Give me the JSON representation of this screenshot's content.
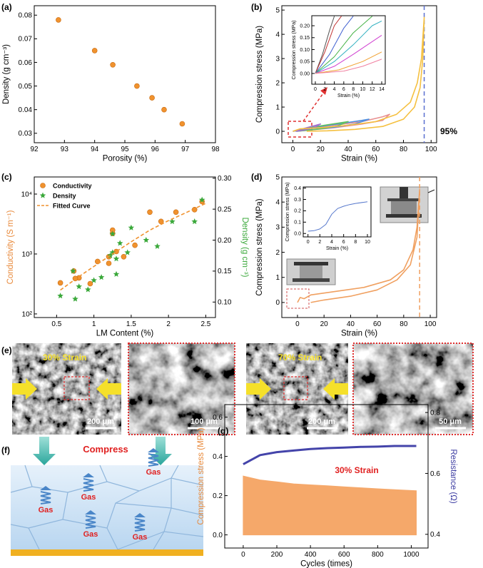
{
  "chart_data": [
    {
      "type": "scatter",
      "panel": "(a)",
      "xlabel": "Porosity (%)",
      "ylabel": "Density (g cm⁻³)",
      "xlim": [
        92,
        98
      ],
      "xticks": [
        92,
        93,
        94,
        95,
        96,
        97,
        98
      ],
      "ylim": [
        0.026,
        0.084
      ],
      "yticks": [
        0.03,
        0.04,
        0.05,
        0.06,
        0.07,
        0.08
      ],
      "series": [
        {
          "name": "Density",
          "color": "#f0922e",
          "x": [
            92.8,
            94,
            94.6,
            95.4,
            95.9,
            96.3,
            96.9
          ],
          "values": [
            0.078,
            0.065,
            0.059,
            0.05,
            0.045,
            0.04,
            0.034
          ]
        }
      ]
    },
    {
      "type": "line",
      "panel": "(b)",
      "xlabel": "Strain (%)",
      "ylabel": "Compression stress (MPa)",
      "xlim": [
        -8,
        104
      ],
      "xticks": [
        0,
        20,
        40,
        60,
        80,
        100
      ],
      "ylim": [
        -0.47,
        5.18
      ],
      "yticks": [
        0,
        1,
        2,
        3,
        4,
        5
      ],
      "vline": 95,
      "vline_color": "#5a6fd0",
      "annotation": "95%",
      "annotation_color": "#000000",
      "series": [
        {
          "color": "#e89090",
          "x": [
            0,
            10,
            30,
            50,
            65,
            70,
            65,
            50,
            30,
            10,
            3
          ],
          "values": [
            0,
            0.12,
            0.25,
            0.4,
            0.6,
            0.7,
            0.45,
            0.3,
            0.15,
            0.04,
            0
          ]
        },
        {
          "color": "#5090e0",
          "x": [
            0,
            10,
            30,
            50,
            55,
            45,
            30,
            10,
            3
          ],
          "values": [
            0,
            0.12,
            0.28,
            0.45,
            0.5,
            0.3,
            0.17,
            0.05,
            0
          ]
        },
        {
          "color": "#60c060",
          "x": [
            0,
            10,
            25,
            40,
            32,
            20,
            8,
            2
          ],
          "values": [
            0,
            0.13,
            0.27,
            0.4,
            0.22,
            0.1,
            0.03,
            0
          ]
        },
        {
          "color": "#a070d0",
          "x": [
            0,
            8,
            20,
            15,
            8,
            2
          ],
          "values": [
            0,
            0.12,
            0.3,
            0.15,
            0.05,
            0
          ]
        },
        {
          "color": "#f5c040",
          "x": [
            0,
            5,
            20,
            40,
            60,
            75,
            85,
            90,
            93,
            95,
            94,
            92,
            88,
            80,
            65,
            45,
            25,
            10
          ],
          "values": [
            0,
            0.1,
            0.15,
            0.25,
            0.4,
            0.7,
            1.2,
            2,
            3,
            4.7,
            3,
            1.8,
            1,
            0.5,
            0.2,
            0.08,
            0.02,
            0
          ]
        }
      ]
    },
    {
      "type": "line",
      "xlabel": "Strain (%)",
      "ylabel": "Compression stress (MPa)",
      "xlim": [
        -0.75,
        14.75
      ],
      "xticks": [
        0,
        2,
        4,
        6,
        8,
        10,
        12,
        14
      ],
      "ylim": [
        -0.045,
        0.242
      ],
      "yticks": [
        {
          "value": 0,
          "label": "0.00"
        },
        0.05,
        {
          "value": 0.1,
          "label": "0.10"
        },
        0.15,
        {
          "value": 0.2,
          "label": "0.20"
        }
      ],
      "series": [
        {
          "color": "#555555",
          "x": [
            0,
            1.5,
            3,
            4
          ],
          "values": [
            0,
            0.08,
            0.18,
            0.24
          ]
        },
        {
          "color": "#c03030",
          "x": [
            0,
            2,
            4,
            5.5
          ],
          "values": [
            0,
            0.09,
            0.2,
            0.24
          ]
        },
        {
          "color": "#4060d0",
          "x": [
            0,
            3,
            6,
            8
          ],
          "values": [
            0,
            0.08,
            0.19,
            0.24
          ]
        },
        {
          "color": "#40b040",
          "x": [
            0,
            4,
            8,
            12
          ],
          "values": [
            0,
            0.07,
            0.17,
            0.24
          ]
        },
        {
          "color": "#30b0c0",
          "x": [
            0,
            4,
            8,
            12,
            14
          ],
          "values": [
            0,
            0.05,
            0.12,
            0.2,
            0.22
          ]
        },
        {
          "color": "#d040d0",
          "x": [
            0,
            4,
            8,
            14
          ],
          "values": [
            0,
            0.03,
            0.08,
            0.16
          ]
        },
        {
          "color": "#f0a030",
          "x": [
            0,
            5,
            10,
            14
          ],
          "values": [
            0,
            0.015,
            0.05,
            0.09
          ]
        },
        {
          "color": "#f080a0",
          "x": [
            0,
            6,
            10,
            14
          ],
          "values": [
            0,
            0.01,
            0.03,
            0.06
          ]
        }
      ]
    },
    {
      "type": "scatter",
      "panel": "(c)",
      "xlabel": "LM Content (%)",
      "ylabel": "Conductivity (S m⁻¹)",
      "ylabel_color": "#e8893a",
      "y2label": "Density (g cm⁻³)",
      "y2label_color": "#3aa83a",
      "xlim": [
        0.2,
        2.63
      ],
      "xticks": [
        0.5,
        1,
        1.5,
        2,
        2.5
      ],
      "ylog": true,
      "ylim": [
        87,
        19300
      ],
      "yticks": [
        {
          "value": 100,
          "label": "10²"
        },
        {
          "value": 1000,
          "label": "10³"
        },
        {
          "value": 10000,
          "label": "10⁴"
        }
      ],
      "y2lim": [
        0.075,
        0.302
      ],
      "y2ticks": [
        {
          "value": 0.1,
          "label": "0.10"
        },
        0.15,
        {
          "value": 0.2,
          "label": "0.20"
        },
        0.25,
        {
          "value": 0.3,
          "label": "0.30"
        }
      ],
      "legend": "top-left",
      "series": [
        {
          "name": "Conductivity",
          "color": "#f0922e",
          "marker": "circle",
          "x": [
            0.55,
            0.73,
            0.8,
            0.75,
            0.95,
            1.05,
            1.2,
            1.2,
            1.25,
            1.25,
            1.3,
            1.4,
            1.55,
            1.75,
            1.9,
            2.1,
            2.35,
            2.45
          ],
          "values": [
            330,
            520,
            400,
            390,
            320,
            750,
            700,
            900,
            2200,
            2500,
            1100,
            900,
            1400,
            5000,
            3500,
            5000,
            5500,
            7500
          ]
        },
        {
          "name": "Density",
          "color": "#3aa83a",
          "marker": "star",
          "axis": "y2",
          "x": [
            0.55,
            0.72,
            0.75,
            0.8,
            0.92,
            1,
            1.1,
            1.22,
            1.25,
            1.25,
            1.3,
            1.3,
            1.35,
            1.45,
            1.5,
            1.7,
            1.85,
            2.05,
            2.35,
            2.45
          ],
          "values": [
            0.11,
            0.15,
            0.105,
            0.125,
            0.12,
            0.135,
            0.14,
            0.175,
            0.21,
            0.18,
            0.17,
            0.145,
            0.195,
            0.18,
            0.22,
            0.2,
            0.19,
            0.23,
            0.23,
            0.265
          ]
        },
        {
          "name": "Fitted Curve",
          "color": "#f0922e",
          "type": "line",
          "dash": true,
          "x": [
            0.55,
            0.8,
            1,
            1.25,
            1.5,
            1.75,
            2,
            2.25,
            2.5
          ],
          "values": [
            250,
            420,
            620,
            1000,
            1600,
            2500,
            3600,
            5000,
            7000
          ]
        }
      ]
    },
    {
      "type": "line",
      "panel": "(d)",
      "xlabel": "Strain (%)",
      "ylabel": "Compression stress (MPa)",
      "xlim": [
        -11.8,
        104.8
      ],
      "xticks": [
        0,
        20,
        40,
        60,
        80,
        100
      ],
      "ylim": [
        -0.6,
        5
      ],
      "yticks": [
        0,
        1,
        2,
        3,
        4,
        5
      ],
      "vline": 92,
      "vline_color": "#f0a060",
      "series": [
        {
          "color": "#f0a060",
          "x": [
            0,
            2,
            5,
            10,
            30,
            50,
            70,
            80,
            87,
            90,
            92,
            90,
            85,
            75,
            60,
            40,
            20,
            10
          ],
          "values": [
            0,
            0.2,
            0.15,
            0.3,
            0.45,
            0.6,
            0.9,
            1.3,
            2.1,
            3,
            4.5,
            2.6,
            1.5,
            0.9,
            0.5,
            0.25,
            0.1,
            0
          ]
        }
      ]
    },
    {
      "type": "line",
      "xlabel": "Strain (%)",
      "ylabel": "Compression stress (MPa)",
      "xlim": [
        -0.8,
        10.6
      ],
      "xticks": [
        0,
        2,
        4,
        6,
        8,
        10
      ],
      "ylim": [
        -0.03,
        0.41
      ],
      "yticks": [
        {
          "value": 0,
          "label": "0.0"
        },
        0.1,
        0.2,
        0.3,
        0.4
      ],
      "series": [
        {
          "color": "#5577cc",
          "x": [
            0,
            1,
            2,
            3,
            4,
            5,
            6,
            7,
            8,
            10
          ],
          "values": [
            0.02,
            0.025,
            0.04,
            0.08,
            0.17,
            0.22,
            0.24,
            0.255,
            0.265,
            0.28
          ]
        }
      ]
    },
    {
      "type": "line",
      "panel": "(g)",
      "xlabel": "Cycles (times)",
      "ylabel": "Compression stress (MPa)",
      "ylabel_color": "#e8893a",
      "y2label": "Resistance (Ω)",
      "y2label_color": "#3a3aa0",
      "xlim": [
        -110,
        1100
      ],
      "xticks": [
        0,
        200,
        400,
        600,
        800,
        1000
      ],
      "ylim": [
        -0.067,
        0.664
      ],
      "yticks": [
        {
          "value": 0,
          "label": "0.0"
        },
        0.2,
        0.4,
        0.6
      ],
      "y2lim": [
        0.355,
        0.826
      ],
      "y2ticks": [
        0.4,
        0.6,
        0.8
      ],
      "annotation": "30% Strain",
      "annotation_color": "#e02020",
      "series": [
        {
          "name": "Compression stress",
          "color": "#f5a86a",
          "type": "area",
          "x": [
            0,
            100,
            200,
            300,
            400,
            500,
            600,
            700,
            800,
            900,
            1030
          ],
          "values": [
            0.3,
            0.28,
            0.27,
            0.26,
            0.255,
            0.25,
            0.245,
            0.24,
            0.235,
            0.23,
            0.225
          ]
        },
        {
          "name": "Resistance",
          "color": "#4444aa",
          "axis": "y2",
          "x": [
            0,
            100,
            200,
            300,
            400,
            500,
            600,
            700,
            800,
            900,
            1030
          ],
          "values": [
            0.63,
            0.66,
            0.67,
            0.675,
            0.68,
            0.683,
            0.685,
            0.687,
            0.688,
            0.69,
            0.69
          ]
        }
      ]
    }
  ],
  "panel_e": {
    "label": "(e)",
    "images": [
      {
        "strain": "30% Strain",
        "scale": "200 μm"
      },
      {
        "scale": "100 μm"
      },
      {
        "strain": "70% Strain",
        "scale": "200 μm"
      },
      {
        "scale": "50 μm"
      }
    ]
  },
  "panel_f": {
    "label": "(f)",
    "title": "Compress",
    "gas": [
      "Gas",
      "Gas",
      "Gas",
      "Gas",
      "Gas"
    ]
  }
}
